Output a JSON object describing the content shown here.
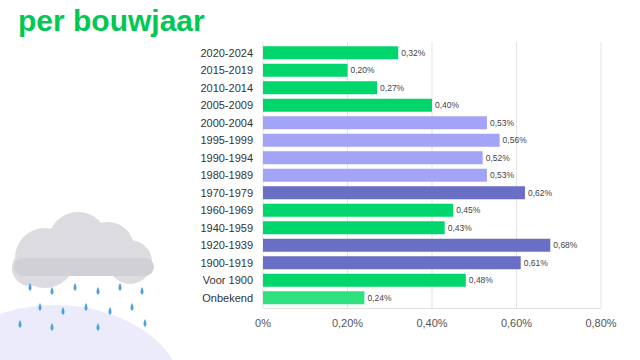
{
  "chart_data": {
    "type": "bar",
    "title": "per bouwjaar",
    "orientation": "horizontal",
    "categories": [
      "2020-2024",
      "2015-2019",
      "2010-2014",
      "2005-2009",
      "2000-2004",
      "1995-1999",
      "1990-1994",
      "1980-1989",
      "1970-1979",
      "1960-1969",
      "1940-1959",
      "1920-1939",
      "1900-1919",
      "Voor 1900",
      "Onbekend"
    ],
    "values": [
      0.32,
      0.2,
      0.27,
      0.4,
      0.53,
      0.56,
      0.52,
      0.53,
      0.62,
      0.45,
      0.43,
      0.68,
      0.61,
      0.48,
      0.24
    ],
    "value_labels": [
      "0,32%",
      "0,20%",
      "0,27%",
      "0,40%",
      "0,53%",
      "0,56%",
      "0,52%",
      "0,53%",
      "0,62%",
      "0,45%",
      "0,43%",
      "0,68%",
      "0,61%",
      "0,48%",
      "0,24%"
    ],
    "colors": [
      "#00d66b",
      "#00d66b",
      "#00d66b",
      "#00d66b",
      "#a3a3f7",
      "#a3a3f7",
      "#a3a3f7",
      "#a3a3f7",
      "#6a6fc6",
      "#00d66b",
      "#00d66b",
      "#6a6fc6",
      "#6a6fc6",
      "#00d66b",
      "#2fe07e"
    ],
    "xlim": [
      0,
      0.8
    ],
    "xticks": [
      {
        "value": 0,
        "label": "0%"
      },
      {
        "value": 0.2,
        "label": "0,20%"
      },
      {
        "value": 0.4,
        "label": "0,40%"
      },
      {
        "value": 0.6,
        "label": "0,60%"
      },
      {
        "value": 0.8,
        "label": "0,80%"
      }
    ],
    "grid": true,
    "data_labels": true
  }
}
